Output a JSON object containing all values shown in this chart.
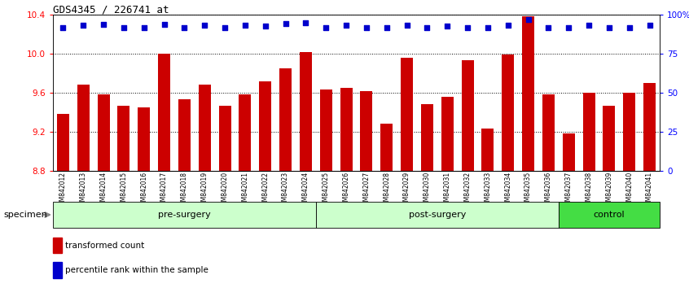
{
  "title": "GDS4345 / 226741_at",
  "samples": [
    "GSM842012",
    "GSM842013",
    "GSM842014",
    "GSM842015",
    "GSM842016",
    "GSM842017",
    "GSM842018",
    "GSM842019",
    "GSM842020",
    "GSM842021",
    "GSM842022",
    "GSM842023",
    "GSM842024",
    "GSM842025",
    "GSM842026",
    "GSM842027",
    "GSM842028",
    "GSM842029",
    "GSM842030",
    "GSM842031",
    "GSM842032",
    "GSM842033",
    "GSM842034",
    "GSM842035",
    "GSM842036",
    "GSM842037",
    "GSM842038",
    "GSM842039",
    "GSM842040",
    "GSM842041"
  ],
  "red_values": [
    9.38,
    9.68,
    9.58,
    9.47,
    9.45,
    10.0,
    9.53,
    9.68,
    9.47,
    9.58,
    9.72,
    9.85,
    10.02,
    9.63,
    9.65,
    9.62,
    9.28,
    9.96,
    9.48,
    9.56,
    9.93,
    9.23,
    9.99,
    10.38,
    9.58,
    9.18,
    9.6,
    9.47,
    9.6,
    9.7
  ],
  "blue_values": [
    10.27,
    10.29,
    10.3,
    10.27,
    10.27,
    10.3,
    10.27,
    10.29,
    10.27,
    10.29,
    10.28,
    10.31,
    10.32,
    10.27,
    10.29,
    10.27,
    10.27,
    10.29,
    10.27,
    10.28,
    10.27,
    10.27,
    10.29,
    10.35,
    10.27,
    10.27,
    10.29,
    10.27,
    10.27,
    10.29
  ],
  "ylim": [
    8.8,
    10.4
  ],
  "yticks_left": [
    8.8,
    9.2,
    9.6,
    10.0,
    10.4
  ],
  "ytick_right_labels": [
    "0",
    "25",
    "50",
    "75",
    "100%"
  ],
  "groups": [
    {
      "label": "pre-surgery",
      "start": 0,
      "end": 13,
      "color": "#ccffcc"
    },
    {
      "label": "post-surgery",
      "start": 13,
      "end": 25,
      "color": "#ccffcc"
    },
    {
      "label": "control",
      "start": 25,
      "end": 30,
      "color": "#44dd44"
    }
  ],
  "bar_color": "#cc0000",
  "dot_color": "#0000cc",
  "legend_red": "transformed count",
  "legend_blue": "percentile rank within the sample",
  "specimen_label": "specimen",
  "xtick_bg": "#cccccc",
  "plot_bg": "#ffffff"
}
